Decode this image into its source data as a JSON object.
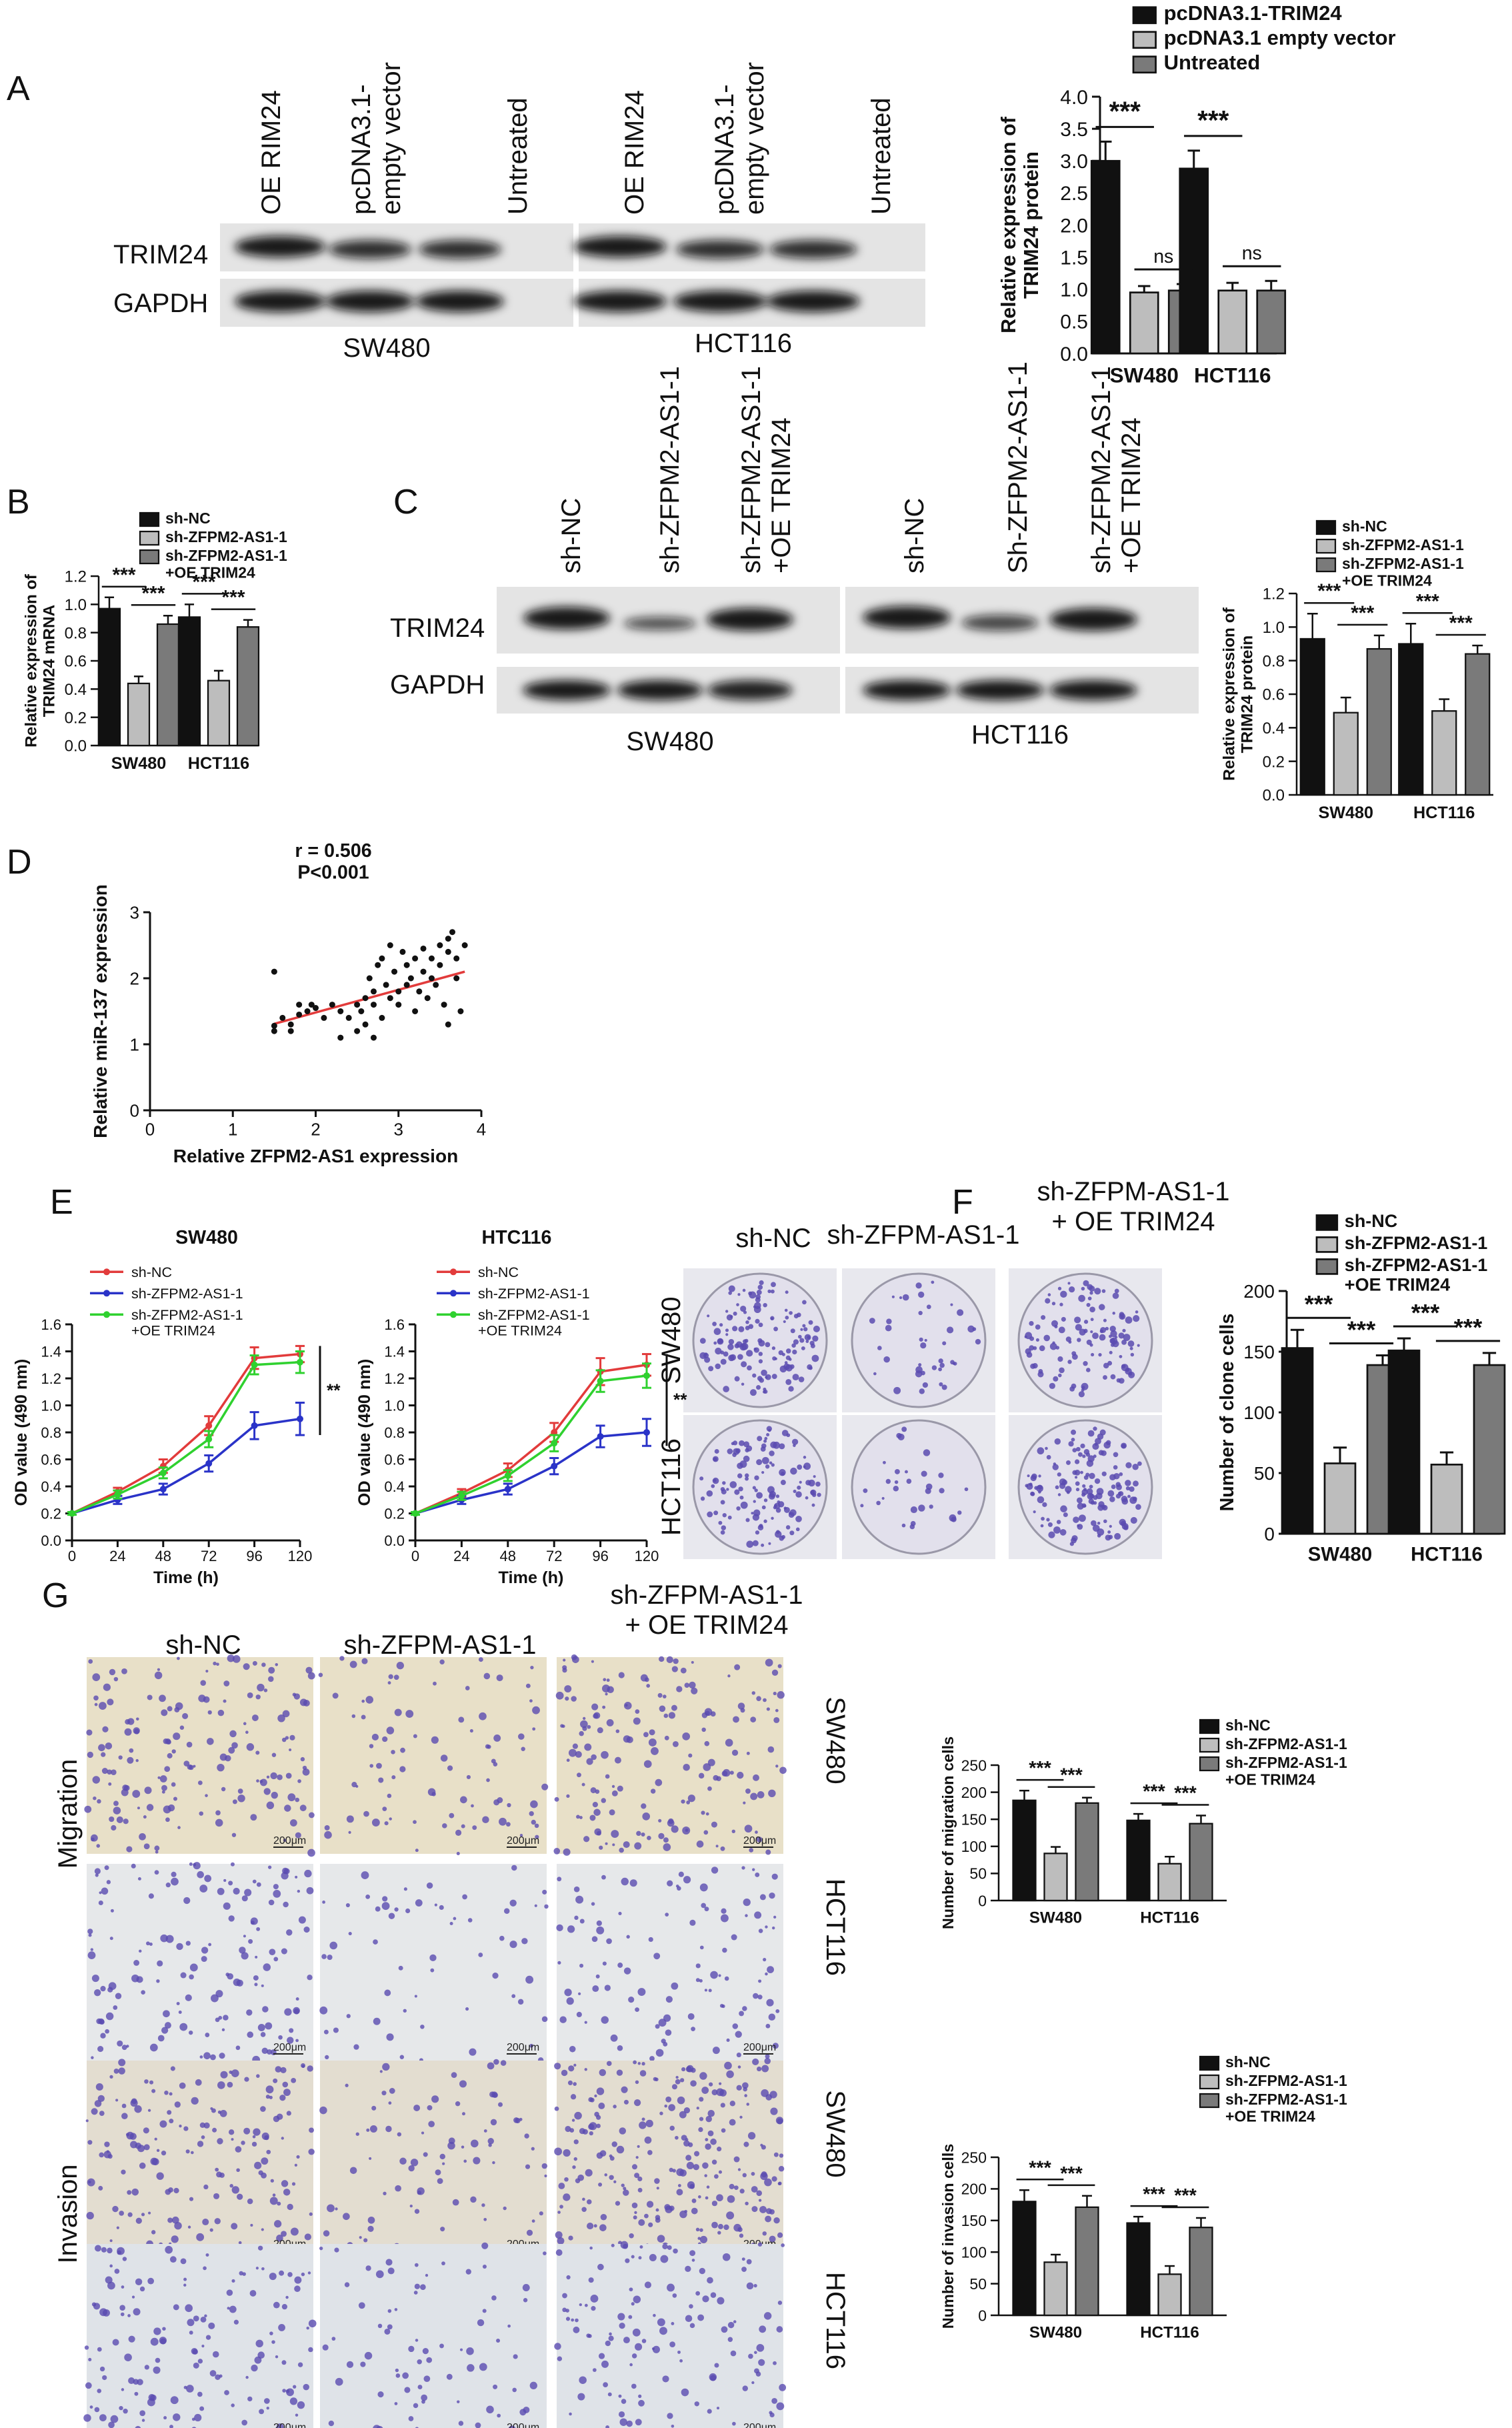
{
  "panel_labels": {
    "A": "A",
    "B": "B",
    "C": "C",
    "D": "D",
    "E": "E",
    "F": "F",
    "G": "G"
  },
  "colors": {
    "black": "#111111",
    "light_gray": "#bdbdbd",
    "dark_gray": "#7a7a7a",
    "red": "#e23b3b",
    "blue": "#2a33c8",
    "green": "#2fd12f",
    "blot_bg": "#e4e4e4",
    "stain": "#5a4bb0"
  },
  "blot_A": {
    "lanes_sw480": [
      "OE RIM24",
      "pcDNA3.1-\nempty vector",
      "Untreated"
    ],
    "lanes_hct116": [
      "OE RIM24",
      "pcDNA3.1-\nempty vector",
      "Untreated"
    ],
    "rows": [
      "TRIM24",
      "GAPDH"
    ],
    "cells": [
      "SW480",
      "HCT116"
    ]
  },
  "blot_C": {
    "lanes_sw480": [
      "sh-NC",
      "sh-ZFPM2-AS1-1",
      "sh-ZFPM2-AS1-1\n+OE TRIM24"
    ],
    "lanes_hct116": [
      "sh-NC",
      "Sh-ZFPM2-AS1-1",
      "sh-ZFPM2-AS1-1\n+OE TRIM24"
    ],
    "rows": [
      "TRIM24",
      "GAPDH"
    ],
    "cells": [
      "SW480",
      "HCT116"
    ]
  },
  "panel_F": {
    "col_labels": [
      "sh-NC",
      "sh-ZFPM-AS1-1",
      "sh-ZFPM-AS1-1\n+ OE TRIM24"
    ],
    "row_labels": [
      "SW480",
      "HCT116"
    ]
  },
  "panel_G": {
    "col_labels": [
      "sh-NC",
      "sh-ZFPM-AS1-1",
      "sh-ZFPM-AS1-1\n+ OE TRIM24"
    ],
    "side_labels": [
      "Migration",
      "Invasion"
    ],
    "row_labels": [
      "SW480",
      "HCT116",
      "SW480",
      "HCT116"
    ],
    "scale_text": "200μm"
  },
  "chart_data": [
    {
      "id": "A",
      "type": "bar",
      "ylabel": "Relative expression of\nTRIM24 protein",
      "ylim": [
        0,
        4.0
      ],
      "yticks": [
        0.0,
        0.5,
        1.0,
        1.5,
        2.0,
        2.5,
        3.0,
        3.5,
        4.0
      ],
      "ytick_decimals": 1,
      "categories": [
        "SW480",
        "HCT116"
      ],
      "legend": [
        "pcDNA3.1-TRIM24",
        "pcDNA3.1 empty vector",
        "Untreated"
      ],
      "series": [
        {
          "name": "pcDNA3.1-TRIM24",
          "values": [
            3.0,
            2.88
          ],
          "errors": [
            0.3,
            0.28
          ]
        },
        {
          "name": "pcDNA3.1 empty vector",
          "values": [
            0.95,
            0.98
          ],
          "errors": [
            0.1,
            0.12
          ]
        },
        {
          "name": "Untreated",
          "values": [
            0.98,
            0.98
          ],
          "errors": [
            0.1,
            0.15
          ]
        }
      ],
      "annotations": [
        {
          "category": 0,
          "from": 0,
          "to": 1,
          "label": "***"
        },
        {
          "category": 0,
          "from": 1,
          "to": 2,
          "label": "ns"
        },
        {
          "category": 1,
          "from": 0,
          "to": 1,
          "label": "***"
        },
        {
          "category": 1,
          "from": 1,
          "to": 2,
          "label": "ns"
        }
      ]
    },
    {
      "id": "B",
      "type": "bar",
      "ylabel": "Relative expression of\nTRIM24 mRNA",
      "ylim": [
        0,
        1.2
      ],
      "yticks": [
        0.0,
        0.2,
        0.4,
        0.6,
        0.8,
        1.0,
        1.2
      ],
      "ytick_decimals": 1,
      "categories": [
        "SW480",
        "HCT116"
      ],
      "legend": [
        "sh-NC",
        "sh-ZFPM2-AS1-1",
        "sh-ZFPM2-AS1-1\n+OE TRIM24"
      ],
      "series": [
        {
          "name": "sh-NC",
          "values": [
            0.97,
            0.91
          ],
          "errors": [
            0.08,
            0.09
          ]
        },
        {
          "name": "sh-ZFPM2-AS1-1",
          "values": [
            0.44,
            0.46
          ],
          "errors": [
            0.05,
            0.07
          ]
        },
        {
          "name": "sh-ZFPM2-AS1-1\n+OE TRIM24",
          "values": [
            0.86,
            0.84
          ],
          "errors": [
            0.06,
            0.05
          ]
        }
      ],
      "annotations": [
        {
          "category": 0,
          "from": 0,
          "to": 1,
          "label": "***"
        },
        {
          "category": 0,
          "from": 1,
          "to": 2,
          "label": "***"
        },
        {
          "category": 1,
          "from": 0,
          "to": 1,
          "label": "***"
        },
        {
          "category": 1,
          "from": 1,
          "to": 2,
          "label": "***"
        }
      ]
    },
    {
      "id": "C",
      "type": "bar",
      "ylabel": "Relative expression of\nTRIM24 protein",
      "ylim": [
        0,
        1.2
      ],
      "yticks": [
        0.0,
        0.2,
        0.4,
        0.6,
        0.8,
        1.0,
        1.2
      ],
      "ytick_decimals": 1,
      "categories": [
        "SW480",
        "HCT116"
      ],
      "legend": [
        "sh-NC",
        "sh-ZFPM2-AS1-1",
        "sh-ZFPM2-AS1-1\n+OE TRIM24"
      ],
      "series": [
        {
          "name": "sh-NC",
          "values": [
            0.93,
            0.9
          ],
          "errors": [
            0.15,
            0.12
          ]
        },
        {
          "name": "sh-ZFPM2-AS1-1",
          "values": [
            0.49,
            0.5
          ],
          "errors": [
            0.09,
            0.07
          ]
        },
        {
          "name": "sh-ZFPM2-AS1-1\n+OE TRIM24",
          "values": [
            0.87,
            0.84
          ],
          "errors": [
            0.08,
            0.05
          ]
        }
      ],
      "annotations": [
        {
          "category": 0,
          "from": 0,
          "to": 1,
          "label": "***"
        },
        {
          "category": 0,
          "from": 1,
          "to": 2,
          "label": "***"
        },
        {
          "category": 1,
          "from": 0,
          "to": 1,
          "label": "***"
        },
        {
          "category": 1,
          "from": 1,
          "to": 2,
          "label": "***"
        }
      ]
    },
    {
      "id": "D",
      "type": "scatter",
      "annotation": [
        "r = 0.506",
        "P<0.001"
      ],
      "xlabel": "Relative ZFPM2-AS1 expression",
      "ylabel": "Relative miR-137 expression",
      "xlim": [
        0,
        4
      ],
      "ylim": [
        0,
        3
      ],
      "xticks": [
        0,
        1,
        2,
        3,
        4
      ],
      "yticks": [
        0,
        1,
        2,
        3
      ],
      "fit": {
        "x": [
          1.5,
          3.8
        ],
        "y": [
          1.31,
          2.1
        ]
      },
      "points": [
        [
          1.5,
          2.1
        ],
        [
          1.5,
          1.28
        ],
        [
          1.5,
          1.2
        ],
        [
          1.6,
          1.4
        ],
        [
          1.7,
          1.3
        ],
        [
          1.7,
          1.2
        ],
        [
          1.8,
          1.6
        ],
        [
          1.8,
          1.45
        ],
        [
          1.9,
          1.5
        ],
        [
          1.95,
          1.6
        ],
        [
          2.0,
          1.55
        ],
        [
          2.1,
          1.4
        ],
        [
          2.2,
          1.6
        ],
        [
          2.3,
          1.5
        ],
        [
          2.3,
          1.1
        ],
        [
          2.4,
          1.4
        ],
        [
          2.5,
          1.6
        ],
        [
          2.5,
          1.2
        ],
        [
          2.55,
          1.5
        ],
        [
          2.6,
          1.7
        ],
        [
          2.6,
          1.3
        ],
        [
          2.65,
          2.0
        ],
        [
          2.7,
          1.6
        ],
        [
          2.7,
          1.1
        ],
        [
          2.7,
          1.8
        ],
        [
          2.75,
          2.2
        ],
        [
          2.8,
          1.4
        ],
        [
          2.8,
          2.3
        ],
        [
          2.85,
          1.9
        ],
        [
          2.9,
          1.7
        ],
        [
          2.9,
          2.5
        ],
        [
          2.95,
          2.1
        ],
        [
          3.0,
          1.8
        ],
        [
          3.0,
          1.6
        ],
        [
          3.05,
          2.4
        ],
        [
          3.1,
          1.9
        ],
        [
          3.1,
          2.2
        ],
        [
          3.15,
          2.0
        ],
        [
          3.2,
          1.5
        ],
        [
          3.2,
          2.3
        ],
        [
          3.25,
          1.8
        ],
        [
          3.3,
          2.1
        ],
        [
          3.3,
          2.45
        ],
        [
          3.35,
          1.7
        ],
        [
          3.4,
          2.0
        ],
        [
          3.4,
          2.3
        ],
        [
          3.45,
          1.9
        ],
        [
          3.5,
          2.5
        ],
        [
          3.5,
          2.2
        ],
        [
          3.55,
          1.6
        ],
        [
          3.6,
          2.4
        ],
        [
          3.6,
          2.6
        ],
        [
          3.6,
          1.3
        ],
        [
          3.65,
          2.7
        ],
        [
          3.7,
          2.0
        ],
        [
          3.7,
          2.3
        ],
        [
          3.75,
          1.5
        ],
        [
          3.8,
          2.5
        ]
      ]
    },
    {
      "id": "E1",
      "type": "line",
      "title": "SW480",
      "xlabel": "Time (h)",
      "ylabel": "OD value (490 nm)",
      "xlim": [
        0,
        120
      ],
      "ylim": [
        0,
        1.6
      ],
      "x": [
        0,
        24,
        48,
        72,
        96,
        120
      ],
      "xticks": [
        0,
        24,
        48,
        72,
        96,
        120
      ],
      "yticks": [
        0.0,
        0.2,
        0.4,
        0.6,
        0.8,
        1.0,
        1.2,
        1.4,
        1.6
      ],
      "ytick_decimals": 1,
      "legend": [
        "sh-NC",
        "sh-ZFPM2-AS1-1",
        "sh-ZFPM2-AS1-1\n+OE TRIM24"
      ],
      "series": [
        {
          "name": "sh-NC",
          "values": [
            0.2,
            0.36,
            0.55,
            0.85,
            1.35,
            1.38
          ],
          "errors": [
            0.01,
            0.03,
            0.05,
            0.07,
            0.08,
            0.06
          ]
        },
        {
          "name": "sh-ZFPM2-AS1-1",
          "values": [
            0.2,
            0.3,
            0.38,
            0.57,
            0.85,
            0.9
          ],
          "errors": [
            0.01,
            0.03,
            0.04,
            0.06,
            0.1,
            0.12
          ]
        },
        {
          "name": "sh-ZFPM2-AS1-1\n+OE TRIM24",
          "values": [
            0.2,
            0.34,
            0.5,
            0.75,
            1.3,
            1.32
          ],
          "errors": [
            0.01,
            0.03,
            0.04,
            0.06,
            0.07,
            0.08
          ]
        }
      ],
      "significance": "**"
    },
    {
      "id": "E2",
      "type": "line",
      "title": "HTC116",
      "xlabel": "Time (h)",
      "ylabel": "OD value (490 nm)",
      "xlim": [
        0,
        120
      ],
      "ylim": [
        0,
        1.6
      ],
      "x": [
        0,
        24,
        48,
        72,
        96,
        120
      ],
      "xticks": [
        0,
        24,
        48,
        72,
        96,
        120
      ],
      "yticks": [
        0.0,
        0.2,
        0.4,
        0.6,
        0.8,
        1.0,
        1.2,
        1.4,
        1.6
      ],
      "ytick_decimals": 1,
      "legend": [
        "sh-NC",
        "sh-ZFPM2-AS1-1",
        "sh-ZFPM2-AS1-1\n+OE TRIM24"
      ],
      "series": [
        {
          "name": "sh-NC",
          "values": [
            0.2,
            0.35,
            0.52,
            0.8,
            1.25,
            1.3
          ],
          "errors": [
            0.01,
            0.03,
            0.05,
            0.07,
            0.1,
            0.08
          ]
        },
        {
          "name": "sh-ZFPM2-AS1-1",
          "values": [
            0.2,
            0.3,
            0.38,
            0.55,
            0.77,
            0.8
          ],
          "errors": [
            0.01,
            0.03,
            0.04,
            0.06,
            0.08,
            0.1
          ]
        },
        {
          "name": "sh-ZFPM2-AS1-1\n+OE TRIM24",
          "values": [
            0.2,
            0.33,
            0.48,
            0.72,
            1.18,
            1.22
          ],
          "errors": [
            0.01,
            0.03,
            0.04,
            0.06,
            0.08,
            0.09
          ]
        }
      ],
      "significance": "**"
    },
    {
      "id": "F",
      "type": "bar",
      "ylabel": "Number of clone cells",
      "ylim": [
        0,
        200
      ],
      "yticks": [
        0,
        50,
        100,
        150,
        200
      ],
      "ytick_decimals": 0,
      "categories": [
        "SW480",
        "HCT116"
      ],
      "legend": [
        "sh-NC",
        "sh-ZFPM2-AS1-1",
        "sh-ZFPM2-AS1-1\n+OE TRIM24"
      ],
      "series": [
        {
          "name": "sh-NC",
          "values": [
            153,
            151
          ],
          "errors": [
            15,
            10
          ]
        },
        {
          "name": "sh-ZFPM2-AS1-1",
          "values": [
            58,
            57
          ],
          "errors": [
            13,
            10
          ]
        },
        {
          "name": "sh-ZFPM2-AS1-1\n+OE TRIM24",
          "values": [
            139,
            139
          ],
          "errors": [
            8,
            10
          ]
        }
      ],
      "annotations": [
        {
          "category": 0,
          "from": 0,
          "to": 1,
          "label": "***"
        },
        {
          "category": 0,
          "from": 1,
          "to": 2,
          "label": "***"
        },
        {
          "category": 1,
          "from": 0,
          "to": 1,
          "label": "***"
        },
        {
          "category": 1,
          "from": 1,
          "to": 2,
          "label": "***"
        }
      ]
    },
    {
      "id": "G1",
      "type": "bar",
      "ylabel": "Number of migration cells",
      "ylim": [
        0,
        250
      ],
      "yticks": [
        0,
        50,
        100,
        150,
        200,
        250
      ],
      "ytick_decimals": 0,
      "categories": [
        "SW480",
        "HCT116"
      ],
      "legend": [
        "sh-NC",
        "sh-ZFPM2-AS1-1",
        "sh-ZFPM2-AS1-1\n+OE TRIM24"
      ],
      "series": [
        {
          "name": "sh-NC",
          "values": [
            185,
            148
          ],
          "errors": [
            18,
            12
          ]
        },
        {
          "name": "sh-ZFPM2-AS1-1",
          "values": [
            87,
            68
          ],
          "errors": [
            12,
            13
          ]
        },
        {
          "name": "sh-ZFPM2-AS1-1\n+OE TRIM24",
          "values": [
            180,
            142
          ],
          "errors": [
            10,
            15
          ]
        }
      ],
      "annotations": [
        {
          "category": 0,
          "from": 0,
          "to": 1,
          "label": "***"
        },
        {
          "category": 0,
          "from": 1,
          "to": 2,
          "label": "***"
        },
        {
          "category": 1,
          "from": 0,
          "to": 1,
          "label": "***"
        },
        {
          "category": 1,
          "from": 1,
          "to": 2,
          "label": "***"
        }
      ]
    },
    {
      "id": "G2",
      "type": "bar",
      "ylabel": "Number of invasion cells",
      "ylim": [
        0,
        250
      ],
      "yticks": [
        0,
        50,
        100,
        150,
        200,
        250
      ],
      "ytick_decimals": 0,
      "categories": [
        "SW480",
        "HCT116"
      ],
      "legend": [
        "sh-NC",
        "sh-ZFPM2-AS1-1",
        "sh-ZFPM2-AS1-1\n+OE TRIM24"
      ],
      "series": [
        {
          "name": "sh-NC",
          "values": [
            180,
            146
          ],
          "errors": [
            18,
            10
          ]
        },
        {
          "name": "sh-ZFPM2-AS1-1",
          "values": [
            84,
            65
          ],
          "errors": [
            12,
            13
          ]
        },
        {
          "name": "sh-ZFPM2-AS1-1\n+OE TRIM24",
          "values": [
            171,
            139
          ],
          "errors": [
            18,
            15
          ]
        }
      ],
      "annotations": [
        {
          "category": 0,
          "from": 0,
          "to": 1,
          "label": "***"
        },
        {
          "category": 0,
          "from": 1,
          "to": 2,
          "label": "***"
        },
        {
          "category": 1,
          "from": 0,
          "to": 1,
          "label": "***"
        },
        {
          "category": 1,
          "from": 1,
          "to": 2,
          "label": "***"
        }
      ]
    }
  ]
}
